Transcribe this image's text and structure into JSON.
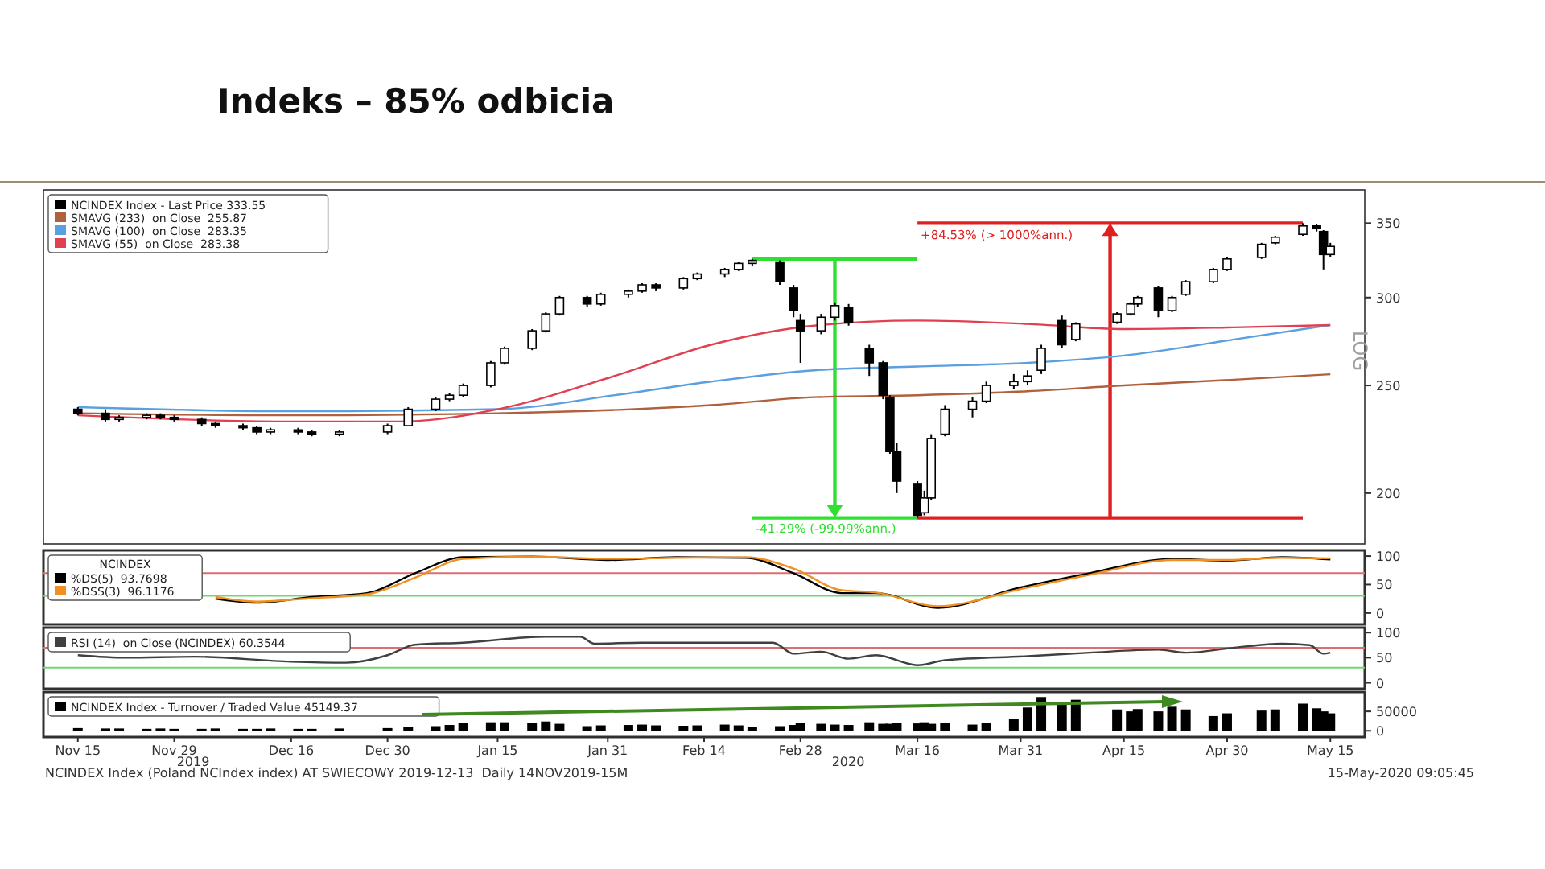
{
  "chart_data": [
    {
      "type": "candlestick",
      "title": "Indeks – 85% odbicia",
      "ylabel": "LOG",
      "log": "y",
      "xlim": [
        "2019-11-10",
        "2020-05-20"
      ],
      "ylim": [
        180,
        375
      ],
      "yticks": [
        200,
        250,
        300,
        350
      ],
      "tick_labels": "y",
      "legend": "top left",
      "annotations": [
        "-41.29% (-99.99%ann.)",
        "+84.53% (> 1000%ann.)"
      ],
      "series": [
        {
          "name": "NCINDEX Index - Last Price 333.55",
          "type": "candlestick",
          "color": "#000000",
          "x": [
            "2019-11-15",
            "2019-11-19",
            "2019-11-21",
            "2019-11-25",
            "2019-11-27",
            "2019-11-29",
            "2019-12-03",
            "2019-12-05",
            "2019-12-09",
            "2019-12-11",
            "2019-12-13",
            "2019-12-17",
            "2019-12-19",
            "2019-12-23",
            "2019-12-30",
            "2020-01-02",
            "2020-01-06",
            "2020-01-08",
            "2020-01-10",
            "2020-01-14",
            "2020-01-16",
            "2020-01-20",
            "2020-01-22",
            "2020-01-24",
            "2020-01-28",
            "2020-01-30",
            "2020-02-03",
            "2020-02-05",
            "2020-02-07",
            "2020-02-11",
            "2020-02-13",
            "2020-02-17",
            "2020-02-19",
            "2020-02-21",
            "2020-02-25",
            "2020-02-27",
            "2020-02-28",
            "2020-03-02",
            "2020-03-04",
            "2020-03-06",
            "2020-03-09",
            "2020-03-11",
            "2020-03-12",
            "2020-03-13",
            "2020-03-16",
            "2020-03-17",
            "2020-03-18",
            "2020-03-20",
            "2020-03-24",
            "2020-03-26",
            "2020-03-30",
            "2020-04-01",
            "2020-04-03",
            "2020-04-06",
            "2020-04-08",
            "2020-04-14",
            "2020-04-16",
            "2020-04-17",
            "2020-04-20",
            "2020-04-22",
            "2020-04-24",
            "2020-04-28",
            "2020-04-30",
            "2020-05-05",
            "2020-05-07",
            "2020-05-11",
            "2020-05-13",
            "2020-05-14",
            "2020-05-15"
          ],
          "ohlc": [
            [
              238,
              239,
              235,
              236
            ],
            [
              236,
              238,
              232,
              233
            ],
            [
              233,
              235,
              232,
              234
            ],
            [
              234,
              236,
              233,
              235
            ],
            [
              235,
              236,
              233,
              234
            ],
            [
              234,
              235,
              232,
              233
            ],
            [
              233,
              234,
              230,
              231
            ],
            [
              231,
              232,
              229,
              230
            ],
            [
              230,
              231,
              228,
              229
            ],
            [
              229,
              230,
              226,
              227
            ],
            [
              227,
              229,
              226,
              228
            ],
            [
              228,
              229,
              226,
              227
            ],
            [
              227,
              228,
              225,
              226
            ],
            [
              226,
              228,
              225,
              227
            ],
            [
              227,
              231,
              226,
              230
            ],
            [
              230,
              239,
              230,
              238
            ],
            [
              238,
              244,
              237,
              243
            ],
            [
              243,
              246,
              242,
              245
            ],
            [
              245,
              251,
              244,
              250
            ],
            [
              250,
              263,
              249,
              262
            ],
            [
              262,
              271,
              261,
              270
            ],
            [
              270,
              281,
              269,
              280
            ],
            [
              280,
              291,
              279,
              290
            ],
            [
              290,
              301,
              289,
              300
            ],
            [
              300,
              301,
              294,
              296
            ],
            [
              296,
              303,
              295,
              302
            ],
            [
              302,
              305,
              300,
              304
            ],
            [
              304,
              309,
              303,
              308
            ],
            [
              308,
              309,
              304,
              306
            ],
            [
              306,
              313,
              305,
              312
            ],
            [
              312,
              316,
              311,
              315
            ],
            [
              315,
              319,
              313,
              318
            ],
            [
              318,
              323,
              317,
              322
            ],
            [
              322,
              325,
              320,
              324
            ],
            [
              323,
              324,
              308,
              310
            ],
            [
              306,
              308,
              288,
              292
            ],
            [
              286,
              290,
              262,
              280
            ],
            [
              280,
              290,
              278,
              288
            ],
            [
              288,
              297,
              286,
              295
            ],
            [
              294,
              296,
              283,
              285
            ],
            [
              270,
              272,
              255,
              262
            ],
            [
              262,
              263,
              243,
              245
            ],
            [
              244,
              245,
              217,
              218
            ],
            [
              218,
              222,
              200,
              205
            ],
            [
              204,
              205,
              190,
              191
            ],
            [
              192,
              201,
              191,
              198
            ],
            [
              198,
              226,
              197,
              224
            ],
            [
              226,
              240,
              225,
              238
            ],
            [
              238,
              244,
              234,
              242
            ],
            [
              242,
              252,
              241,
              250
            ],
            [
              250,
              256,
              248,
              252
            ],
            [
              252,
              258,
              250,
              255
            ],
            [
              258,
              272,
              256,
              270
            ],
            [
              286,
              289,
              270,
              272
            ],
            [
              275,
              285,
              274,
              284
            ],
            [
              285,
              291,
              284,
              290
            ],
            [
              290,
              297,
              289,
              296
            ],
            [
              296,
              301,
              294,
              300
            ],
            [
              306,
              307,
              288,
              292
            ],
            [
              292,
              301,
              291,
              300
            ],
            [
              302,
              311,
              301,
              310
            ],
            [
              310,
              319,
              309,
              318
            ],
            [
              318,
              326,
              317,
              325
            ],
            [
              326,
              336,
              325,
              335
            ],
            [
              336,
              341,
              335,
              340
            ],
            [
              342,
              350,
              341,
              348
            ],
            [
              348,
              349,
              344,
              346
            ],
            [
              344,
              345,
              318,
              328
            ],
            [
              328,
              336,
              326,
              333.55
            ]
          ]
        },
        {
          "name": "SMAVG (233)  on Close  255.87",
          "type": "line",
          "color": "#b0603c",
          "x": [
            "2019-11-15",
            "2019-12-15",
            "2020-01-15",
            "2020-02-15",
            "2020-03-01",
            "2020-03-16",
            "2020-04-01",
            "2020-04-15",
            "2020-05-01",
            "2020-05-15"
          ],
          "values": [
            236,
            235,
            236,
            240,
            244,
            245,
            247,
            250,
            253,
            255.87
          ]
        },
        {
          "name": "SMAVG (100)  on Close  283.35",
          "type": "line",
          "color": "#5aa0e0",
          "x": [
            "2019-11-15",
            "2019-12-15",
            "2020-01-15",
            "2020-02-01",
            "2020-02-15",
            "2020-03-01",
            "2020-03-16",
            "2020-04-01",
            "2020-04-15",
            "2020-05-01",
            "2020-05-15"
          ],
          "values": [
            239,
            237,
            238,
            245,
            252,
            258,
            260,
            262,
            266,
            275,
            283.35
          ]
        },
        {
          "name": "SMAVG (55)  on Close  283.38",
          "type": "line",
          "color": "#e04050",
          "x": [
            "2019-11-15",
            "2019-12-15",
            "2020-01-01",
            "2020-01-15",
            "2020-02-01",
            "2020-02-15",
            "2020-03-01",
            "2020-03-16",
            "2020-04-01",
            "2020-04-15",
            "2020-05-01",
            "2020-05-15"
          ],
          "values": [
            235,
            232,
            232,
            238,
            255,
            272,
            283,
            286,
            284,
            281,
            282,
            283.38
          ]
        }
      ]
    },
    {
      "type": "line",
      "legend_title": "NCINDEX",
      "xlim": [
        "2019-11-10",
        "2020-05-20"
      ],
      "ylim": [
        -20,
        110
      ],
      "yticks": [
        0,
        50,
        100
      ],
      "tick_labels": "y",
      "legend": "top left",
      "ref_lines": [
        {
          "axis": "y",
          "value": 70,
          "color": "#d87070"
        },
        {
          "axis": "y",
          "value": 30,
          "color": "#70d870"
        }
      ],
      "series": [
        {
          "name": "%DS(5)  93.7698",
          "color": "#000000",
          "x": [
            "2019-12-05",
            "2019-12-11",
            "2019-12-19",
            "2019-12-27",
            "2020-01-03",
            "2020-01-10",
            "2020-01-20",
            "2020-01-31",
            "2020-02-10",
            "2020-02-20",
            "2020-02-27",
            "2020-03-05",
            "2020-03-10",
            "2020-03-19",
            "2020-03-31",
            "2020-04-10",
            "2020-04-22",
            "2020-04-30",
            "2020-05-08",
            "2020-05-15"
          ],
          "values": [
            25,
            18,
            28,
            35,
            70,
            98,
            99,
            93,
            98,
            97,
            70,
            35,
            35,
            9,
            45,
            70,
            95,
            92,
            98,
            94
          ]
        },
        {
          "name": "%DSS(3)  96.1176",
          "color": "#f09020",
          "x": [
            "2019-12-05",
            "2019-12-11",
            "2019-12-19",
            "2019-12-27",
            "2020-01-03",
            "2020-01-10",
            "2020-01-20",
            "2020-01-31",
            "2020-02-10",
            "2020-02-20",
            "2020-02-27",
            "2020-03-05",
            "2020-03-10",
            "2020-03-19",
            "2020-03-31",
            "2020-04-10",
            "2020-04-22",
            "2020-04-30",
            "2020-05-08",
            "2020-05-15"
          ],
          "values": [
            28,
            20,
            26,
            33,
            62,
            95,
            99,
            95,
            97,
            98,
            78,
            40,
            36,
            12,
            42,
            67,
            93,
            93,
            97,
            96
          ]
        }
      ]
    },
    {
      "type": "line",
      "xlim": [
        "2019-11-10",
        "2020-05-20"
      ],
      "ylim": [
        -12,
        110
      ],
      "yticks": [
        0,
        50,
        100
      ],
      "tick_labels": "y",
      "legend": "top left",
      "ref_lines": [
        {
          "axis": "y",
          "value": 70,
          "color": "#d87070"
        },
        {
          "axis": "y",
          "value": 30,
          "color": "#70d870"
        }
      ],
      "series": [
        {
          "name": "RSI (14)  on Close (NCINDEX) 60.3544",
          "color": "#404040",
          "x": [
            "2019-11-15",
            "2019-11-22",
            "2019-12-02",
            "2019-12-16",
            "2019-12-24",
            "2019-12-30",
            "2020-01-03",
            "2020-01-10",
            "2020-01-22",
            "2020-01-27",
            "2020-01-29",
            "2020-02-05",
            "2020-02-14",
            "2020-02-24",
            "2020-02-27",
            "2020-03-02",
            "2020-03-06",
            "2020-03-10",
            "2020-03-16",
            "2020-03-20",
            "2020-04-01",
            "2020-04-10",
            "2020-04-20",
            "2020-04-24",
            "2020-05-01",
            "2020-05-08",
            "2020-05-12",
            "2020-05-14",
            "2020-05-15"
          ],
          "values": [
            55,
            50,
            52,
            42,
            40,
            55,
            76,
            80,
            92,
            92,
            78,
            80,
            80,
            80,
            58,
            62,
            48,
            55,
            35,
            45,
            53,
            60,
            66,
            60,
            70,
            78,
            75,
            58,
            60
          ]
        }
      ]
    },
    {
      "type": "bar",
      "xlim": [
        "2019-11-10",
        "2020-05-20"
      ],
      "ylim": [
        -16000,
        100000
      ],
      "yticks": [
        0,
        50000
      ],
      "legend": "top left",
      "xticks": [
        {
          "value": "2019-11-15",
          "label": "Nov 15"
        },
        {
          "value": "2019-11-29",
          "label": "Nov 29"
        },
        {
          "value": "2019-12-16",
          "label": "Dec 16"
        },
        {
          "value": "2019-12-30",
          "label": "Dec 30"
        },
        {
          "value": "2020-01-15",
          "label": "Jan 15"
        },
        {
          "value": "2020-01-31",
          "label": "Jan 31"
        },
        {
          "value": "2020-02-14",
          "label": "Feb 14"
        },
        {
          "value": "2020-02-28",
          "label": "Feb 28"
        },
        {
          "value": "2020-03-16",
          "label": "Mar 16"
        },
        {
          "value": "2020-03-31",
          "label": "Mar 31"
        },
        {
          "value": "2020-04-15",
          "label": "Apr 15"
        },
        {
          "value": "2020-04-30",
          "label": "Apr 30"
        },
        {
          "value": "2020-05-15",
          "label": "May 15"
        }
      ],
      "annotations": [
        "2019",
        "2020",
        "NCINDEX Index (Poland NCIndex index) AT SWIECOWY 2019-12-13  Daily 14NOV2019-15M",
        "15-May-2020 09:05:45"
      ],
      "series": [
        {
          "name": "NCINDEX Index - Turnover / Traded Value 45149.37",
          "color": "#000000",
          "x": [
            "2019-11-15",
            "2019-11-19",
            "2019-11-21",
            "2019-11-25",
            "2019-11-27",
            "2019-11-29",
            "2019-12-03",
            "2019-12-05",
            "2019-12-09",
            "2019-12-11",
            "2019-12-13",
            "2019-12-17",
            "2019-12-19",
            "2019-12-23",
            "2019-12-30",
            "2020-01-02",
            "2020-01-06",
            "2020-01-08",
            "2020-01-10",
            "2020-01-14",
            "2020-01-16",
            "2020-01-20",
            "2020-01-22",
            "2020-01-24",
            "2020-01-28",
            "2020-01-30",
            "2020-02-03",
            "2020-02-05",
            "2020-02-07",
            "2020-02-11",
            "2020-02-13",
            "2020-02-17",
            "2020-02-19",
            "2020-02-21",
            "2020-02-25",
            "2020-02-27",
            "2020-02-28",
            "2020-03-02",
            "2020-03-04",
            "2020-03-06",
            "2020-03-09",
            "2020-03-11",
            "2020-03-12",
            "2020-03-13",
            "2020-03-16",
            "2020-03-17",
            "2020-03-18",
            "2020-03-20",
            "2020-03-24",
            "2020-03-26",
            "2020-03-30",
            "2020-04-01",
            "2020-04-03",
            "2020-04-06",
            "2020-04-08",
            "2020-04-14",
            "2020-04-16",
            "2020-04-17",
            "2020-04-20",
            "2020-04-22",
            "2020-04-24",
            "2020-04-28",
            "2020-04-30",
            "2020-05-05",
            "2020-05-07",
            "2020-05-11",
            "2020-05-13",
            "2020-05-14",
            "2020-05-15"
          ],
          "values": [
            7000,
            6000,
            6000,
            5000,
            6000,
            5000,
            5000,
            6000,
            5000,
            5000,
            6000,
            5000,
            5000,
            6000,
            7000,
            9000,
            12000,
            15000,
            20000,
            22000,
            22000,
            20000,
            24000,
            18000,
            12000,
            14000,
            15000,
            16000,
            14000,
            13000,
            14000,
            16000,
            14000,
            10000,
            12000,
            15000,
            20000,
            18000,
            16000,
            15000,
            22000,
            18000,
            18000,
            20000,
            19000,
            22000,
            18000,
            20000,
            16000,
            20000,
            30000,
            60000,
            87000,
            70000,
            80000,
            55000,
            50000,
            56000,
            50000,
            62000,
            55000,
            38000,
            45000,
            52000,
            55000,
            70000,
            58000,
            50000,
            45000
          ]
        }
      ]
    }
  ]
}
